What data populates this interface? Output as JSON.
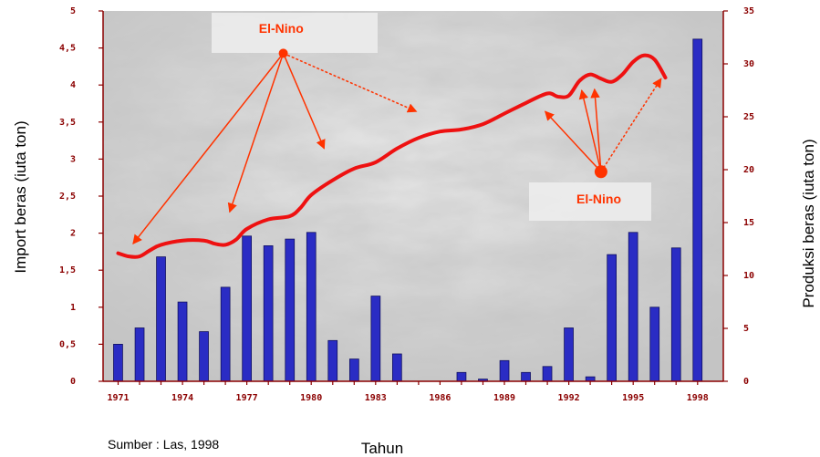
{
  "chart_data": {
    "type": "bar",
    "y_left_label": "Import beras (iuta ton)",
    "y_right_label": "Produksi beras (iuta ton)",
    "xlabel": "Tahun",
    "source_note": "Sumber : Las, 1998",
    "y_left_range": [
      0,
      5
    ],
    "y_right_range": [
      0,
      35
    ],
    "y_left_ticks": [
      "0",
      "0,5",
      "1",
      "1,5",
      "2",
      "2,5",
      "3",
      "3,5",
      "4",
      "4,5",
      "5"
    ],
    "y_right_ticks": [
      "0",
      "5",
      "10",
      "15",
      "20",
      "25",
      "30",
      "35"
    ],
    "x_tick_labels": [
      "1971",
      "1974",
      "1977",
      "1980",
      "1983",
      "1986",
      "1989",
      "1992",
      "1995",
      "1998"
    ],
    "years": [
      1971,
      1972,
      1973,
      1974,
      1975,
      1976,
      1977,
      1978,
      1979,
      1980,
      1981,
      1982,
      1983,
      1984,
      1985,
      1986,
      1987,
      1988,
      1989,
      1990,
      1991,
      1992,
      1993,
      1994,
      1995,
      1996,
      1997,
      1998
    ],
    "import_values": [
      0.5,
      0.72,
      1.68,
      1.07,
      0.67,
      1.27,
      1.96,
      1.83,
      1.92,
      2.01,
      0.55,
      0.3,
      1.15,
      0.37,
      0,
      0,
      0.12,
      0.03,
      0.28,
      0.12,
      0.2,
      0.72,
      0.06,
      1.71,
      2.01,
      1.0,
      1.8,
      4.62
    ],
    "production_points": [
      [
        1971,
        12.1
      ],
      [
        1971.5,
        11.8
      ],
      [
        1972,
        11.8
      ],
      [
        1972.5,
        12.4
      ],
      [
        1973,
        12.9
      ],
      [
        1974,
        13.3
      ],
      [
        1975,
        13.3
      ],
      [
        1975.5,
        13.0
      ],
      [
        1976,
        12.9
      ],
      [
        1976.5,
        13.4
      ],
      [
        1977,
        14.4
      ],
      [
        1978,
        15.3
      ],
      [
        1979,
        15.6
      ],
      [
        1979.5,
        16.4
      ],
      [
        1980,
        17.6
      ],
      [
        1981,
        19.0
      ],
      [
        1982,
        20.1
      ],
      [
        1983,
        20.7
      ],
      [
        1984,
        22.0
      ],
      [
        1985,
        23.0
      ],
      [
        1986,
        23.6
      ],
      [
        1987,
        23.8
      ],
      [
        1988,
        24.3
      ],
      [
        1989,
        25.3
      ],
      [
        1990,
        26.3
      ],
      [
        1991,
        27.2
      ],
      [
        1991.5,
        26.9
      ],
      [
        1992,
        27.0
      ],
      [
        1992.5,
        28.4
      ],
      [
        1993,
        29.0
      ],
      [
        1993.5,
        28.6
      ],
      [
        1994,
        28.3
      ],
      [
        1994.5,
        29.0
      ],
      [
        1995,
        30.2
      ],
      [
        1995.5,
        30.8
      ],
      [
        1996,
        30.4
      ],
      [
        1996.5,
        28.7
      ]
    ],
    "annotations": [
      {
        "label": "El-Nino",
        "arrow_years": [
          1971,
          1976,
          1980,
          1985
        ]
      },
      {
        "label": "El-Nino",
        "arrow_years": [
          1991,
          1992.5,
          1993,
          1996
        ]
      }
    ],
    "colors": {
      "bars": "#2a2cc4",
      "bar_edge": "#101060",
      "production_line": "#ee1111",
      "annotation": "#ff3300",
      "axis_ticks": "#8b0000"
    }
  }
}
